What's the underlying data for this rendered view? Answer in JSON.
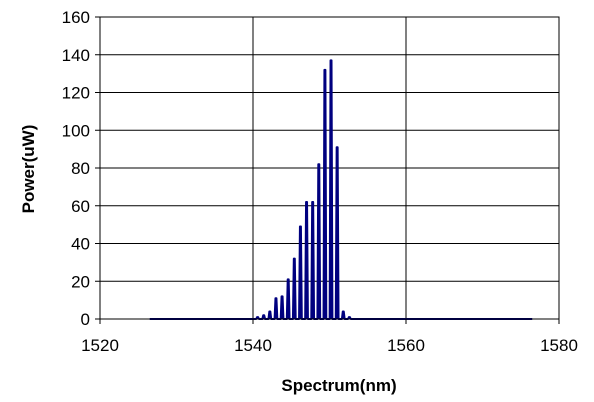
{
  "chart_data": {
    "type": "line",
    "title": "",
    "xlabel": "Spectrum(nm)",
    "ylabel": "Power(uW)",
    "xlim": [
      1520,
      1580
    ],
    "ylim": [
      0,
      160
    ],
    "x_ticks": [
      "1520",
      "1540",
      "1560",
      "1580"
    ],
    "y_ticks": [
      "0",
      "20",
      "40",
      "60",
      "80",
      "100",
      "120",
      "140",
      "160"
    ],
    "grid": true,
    "legend": "none",
    "series_color": "#00007f",
    "baseline_range": [
      1526.5,
      1576.5
    ],
    "peaks": [
      {
        "x": 1540.6,
        "y": 1
      },
      {
        "x": 1541.4,
        "y": 2
      },
      {
        "x": 1542.2,
        "y": 4
      },
      {
        "x": 1543.0,
        "y": 11
      },
      {
        "x": 1543.8,
        "y": 12
      },
      {
        "x": 1544.6,
        "y": 21
      },
      {
        "x": 1545.4,
        "y": 32
      },
      {
        "x": 1546.2,
        "y": 49
      },
      {
        "x": 1547.0,
        "y": 62
      },
      {
        "x": 1547.8,
        "y": 62
      },
      {
        "x": 1548.6,
        "y": 82
      },
      {
        "x": 1549.4,
        "y": 132
      },
      {
        "x": 1550.2,
        "y": 137
      },
      {
        "x": 1551.0,
        "y": 91
      },
      {
        "x": 1551.8,
        "y": 4
      },
      {
        "x": 1552.6,
        "y": 1
      }
    ]
  }
}
